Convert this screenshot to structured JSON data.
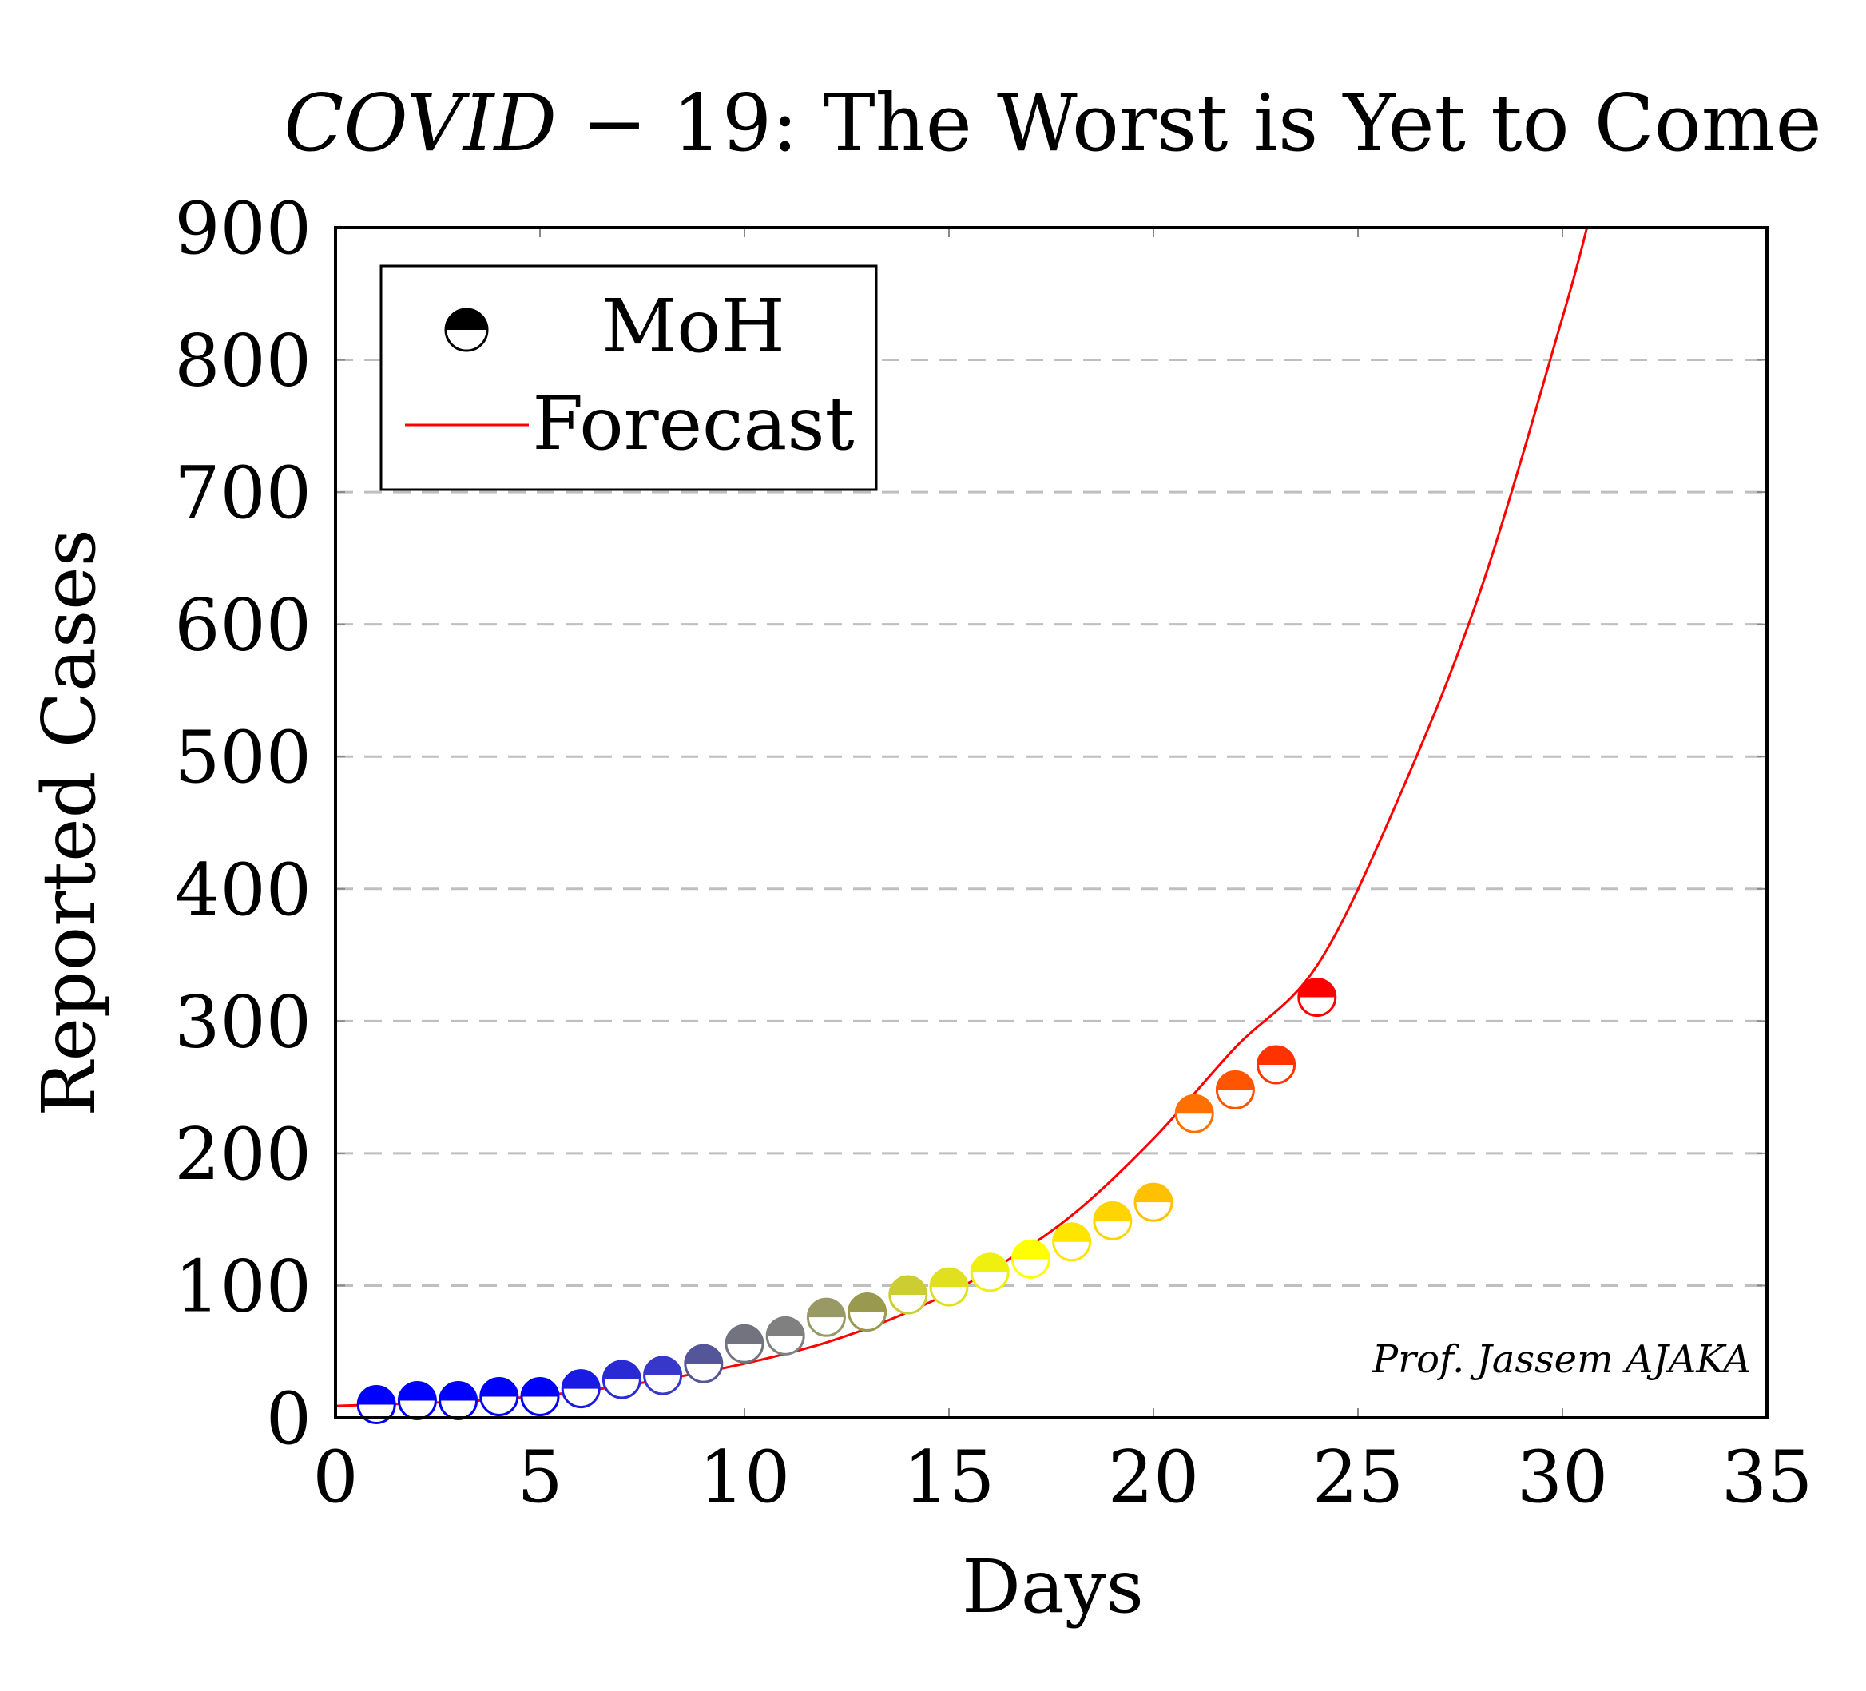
{
  "chart_data": {
    "type": "scatter",
    "title_italic": "COVID",
    "title_rest": " − 19: The Worst is Yet to Come",
    "xlabel": "Days",
    "ylabel": "Reported Cases",
    "xlim": [
      0,
      35
    ],
    "ylim": [
      0,
      900
    ],
    "xticks": [
      "0",
      "5",
      "10",
      "15",
      "20",
      "25",
      "30",
      "35"
    ],
    "yticks": [
      "0",
      "100",
      "200",
      "300",
      "400",
      "500",
      "600",
      "700",
      "800",
      "900"
    ],
    "grid": "horizontal dashed",
    "legend_position": "top-left",
    "credit": "Prof. Jassem AJAKA",
    "series": [
      {
        "name": "MoH",
        "marker": "half-filled circle",
        "x": [
          1,
          2,
          3,
          4,
          5,
          6,
          7,
          8,
          9,
          10,
          11,
          12,
          13,
          14,
          15,
          16,
          17,
          18,
          19,
          20,
          21,
          22,
          23,
          24
        ],
        "y": [
          10,
          13,
          13,
          16,
          16,
          22,
          29,
          32,
          41,
          56,
          62,
          76,
          80,
          93,
          99,
          110,
          120,
          133,
          149,
          163,
          230,
          248,
          267,
          318
        ],
        "colors": [
          "#0000ff",
          "#0000ff",
          "#0000ff",
          "#0000ff",
          "#0000ff",
          "#1a1ae5",
          "#2a2ad4",
          "#3838c8",
          "#555599",
          "#737380",
          "#808080",
          "#999966",
          "#999950",
          "#cccc33",
          "#e0e020",
          "#f0f010",
          "#ffff00",
          "#ffe600",
          "#ffd500",
          "#ffc000",
          "#ff7000",
          "#ff5500",
          "#ff3300",
          "#ff0000"
        ]
      },
      {
        "name": "Forecast",
        "type": "line",
        "color": "#ff0000",
        "x": [
          0,
          2,
          4,
          6,
          8,
          10,
          12,
          14,
          16,
          18,
          20,
          22,
          24,
          26,
          28,
          30,
          30.6
        ],
        "y": [
          9,
          11,
          14,
          20,
          29,
          41,
          57,
          80,
          111,
          153,
          211,
          280,
          342,
          469,
          626,
          832,
          900
        ]
      }
    ]
  }
}
